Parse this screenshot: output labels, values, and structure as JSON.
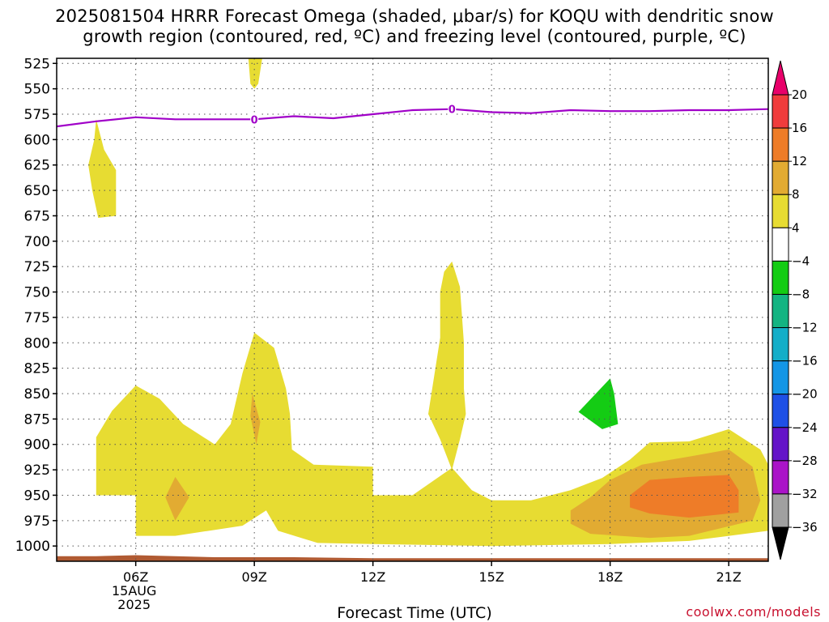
{
  "title": {
    "line1": "2025081504 HRRR Forecast Omega (shaded, μbar/s) for KOQU with dendritic snow",
    "line2": "growth region (contoured, red, ºC) and freezing level (contoured, purple, ºC)"
  },
  "watermark": "coolwx.com/models",
  "chart_data": {
    "type": "time-height cross section",
    "xlabel": "Forecast Time (UTC)",
    "x_ticks": [
      {
        "hour": 6,
        "label": "06Z",
        "sub1": "15AUG",
        "sub2": "2025"
      },
      {
        "hour": 9,
        "label": "09Z"
      },
      {
        "hour": 12,
        "label": "12Z"
      },
      {
        "hour": 15,
        "label": "15Z"
      },
      {
        "hour": 18,
        "label": "18Z"
      },
      {
        "hour": 21,
        "label": "21Z"
      }
    ],
    "xlim_hours": [
      4,
      22
    ],
    "y_ticks": [
      525,
      550,
      575,
      600,
      625,
      650,
      675,
      700,
      725,
      750,
      775,
      800,
      825,
      850,
      875,
      900,
      925,
      950,
      975,
      1000
    ],
    "ylim_hPa": [
      520,
      1015
    ],
    "grid": "dotted",
    "colorbar": {
      "levels": [
        "20",
        "16",
        "12",
        "8",
        "4",
        "−4",
        "−8",
        "−12",
        "−16",
        "−20",
        "−24",
        "−28",
        "−32",
        "−36"
      ],
      "colors": [
        "#e8006a",
        "#f03c3c",
        "#ee7c28",
        "#e2ab32",
        "#e7dc32",
        "#ffffff",
        "#14cc14",
        "#14b482",
        "#14aec8",
        "#1496e6",
        "#1e50e6",
        "#6414c8",
        "#aa14c8",
        "#a0a0a0",
        "#000000"
      ]
    },
    "freezing_level": {
      "label": "0",
      "color": "#a000c8",
      "points": [
        [
          4,
          587
        ],
        [
          5,
          582
        ],
        [
          6,
          578
        ],
        [
          7,
          580
        ],
        [
          8,
          580
        ],
        [
          9,
          580
        ],
        [
          10,
          577
        ],
        [
          11,
          579
        ],
        [
          12,
          575
        ],
        [
          13,
          571
        ],
        [
          14,
          570
        ],
        [
          15,
          573
        ],
        [
          16,
          574
        ],
        [
          17,
          571
        ],
        [
          18,
          572
        ],
        [
          19,
          572
        ],
        [
          20,
          571
        ],
        [
          21,
          571
        ],
        [
          22,
          570
        ]
      ],
      "label_hours": [
        9,
        14
      ]
    },
    "omega_regions": [
      {
        "value": "4 to 8",
        "color": "#e7dc32",
        "points": [
          [
            9,
            520
          ],
          [
            9.2,
            520
          ],
          [
            9.1,
            545
          ],
          [
            9,
            550
          ],
          [
            8.9,
            545
          ],
          [
            8.85,
            520
          ]
        ]
      },
      {
        "value": "4 to 8",
        "color": "#e7dc32",
        "points": [
          [
            5,
            580
          ],
          [
            5.2,
            610
          ],
          [
            5.5,
            630
          ],
          [
            5.5,
            675
          ],
          [
            5.05,
            677
          ],
          [
            4.9,
            650
          ],
          [
            4.8,
            625
          ],
          [
            4.95,
            600
          ]
        ]
      },
      {
        "value": "4 to 8",
        "color": "#e7dc32",
        "points": [
          [
            13.8,
            730
          ],
          [
            14,
            720
          ],
          [
            14.2,
            745
          ],
          [
            14.3,
            800
          ],
          [
            14.3,
            845
          ],
          [
            14.35,
            870
          ],
          [
            14.2,
            895
          ],
          [
            14,
            925
          ],
          [
            13.7,
            895
          ],
          [
            13.4,
            870
          ],
          [
            13.5,
            845
          ],
          [
            13.7,
            795
          ],
          [
            13.7,
            750
          ]
        ]
      },
      {
        "value": "4 to 8",
        "color": "#e7dc32",
        "points": [
          [
            5,
            893
          ],
          [
            5.4,
            867
          ],
          [
            6,
            842
          ],
          [
            6.6,
            855
          ],
          [
            7.2,
            880
          ],
          [
            8,
            900
          ],
          [
            8.4,
            880
          ],
          [
            8.7,
            830
          ],
          [
            9,
            790
          ],
          [
            9.5,
            805
          ],
          [
            9.8,
            845
          ],
          [
            9.9,
            870
          ],
          [
            9.95,
            905
          ],
          [
            10.5,
            920
          ],
          [
            12,
            922
          ],
          [
            12,
            950
          ],
          [
            13,
            950
          ],
          [
            14,
            923
          ],
          [
            14.5,
            945
          ],
          [
            15,
            955
          ],
          [
            16,
            955
          ],
          [
            17,
            945
          ],
          [
            17.8,
            933
          ],
          [
            18.5,
            915
          ],
          [
            19,
            898
          ],
          [
            20,
            897
          ],
          [
            21,
            885
          ],
          [
            21.8,
            905
          ],
          [
            22,
            920
          ],
          [
            22,
            985
          ],
          [
            20,
            995
          ],
          [
            18,
            998
          ],
          [
            15,
            1000
          ],
          [
            12,
            998
          ],
          [
            10.6,
            997
          ],
          [
            9.6,
            985
          ],
          [
            9.3,
            965
          ],
          [
            8.7,
            980
          ],
          [
            7,
            990
          ],
          [
            6,
            990
          ],
          [
            6,
            950
          ],
          [
            5,
            950
          ]
        ]
      },
      {
        "value": "8 to 12",
        "color": "#e2ab32",
        "points": [
          [
            7,
            932
          ],
          [
            7.35,
            952
          ],
          [
            7,
            975
          ],
          [
            6.75,
            952
          ]
        ]
      },
      {
        "value": "8 to 12",
        "color": "#e2ab32",
        "points": [
          [
            8.95,
            850
          ],
          [
            9.15,
            878
          ],
          [
            9.05,
            900
          ],
          [
            8.9,
            872
          ]
        ]
      },
      {
        "value": "8 to 12",
        "color": "#e2ab32",
        "points": [
          [
            17,
            965
          ],
          [
            17.5,
            952
          ],
          [
            18,
            935
          ],
          [
            18.8,
            920
          ],
          [
            20,
            912
          ],
          [
            21,
            905
          ],
          [
            21.6,
            922
          ],
          [
            21.8,
            955
          ],
          [
            21.6,
            975
          ],
          [
            20,
            990
          ],
          [
            19,
            992
          ],
          [
            17.5,
            988
          ],
          [
            17,
            978
          ]
        ]
      },
      {
        "value": "12 to 16",
        "color": "#ee7c28",
        "points": [
          [
            18.5,
            950
          ],
          [
            19,
            935
          ],
          [
            20,
            932
          ],
          [
            21,
            930
          ],
          [
            21.25,
            945
          ],
          [
            21.25,
            967
          ],
          [
            20,
            972
          ],
          [
            19,
            968
          ],
          [
            18.5,
            962
          ]
        ]
      },
      {
        "value": "-4 to -8",
        "color": "#14cc14",
        "points": [
          [
            17.2,
            868
          ],
          [
            18,
            835
          ],
          [
            18.1,
            850
          ],
          [
            18.2,
            880
          ],
          [
            17.8,
            885
          ]
        ]
      }
    ],
    "terrain": {
      "color": "#b05a32",
      "top_hPa": [
        [
          4,
          1010
        ],
        [
          5,
          1010
        ],
        [
          6,
          1009
        ],
        [
          7,
          1010
        ],
        [
          8,
          1011
        ],
        [
          10,
          1011
        ],
        [
          12,
          1012
        ],
        [
          16,
          1012
        ],
        [
          22,
          1012
        ]
      ]
    }
  }
}
